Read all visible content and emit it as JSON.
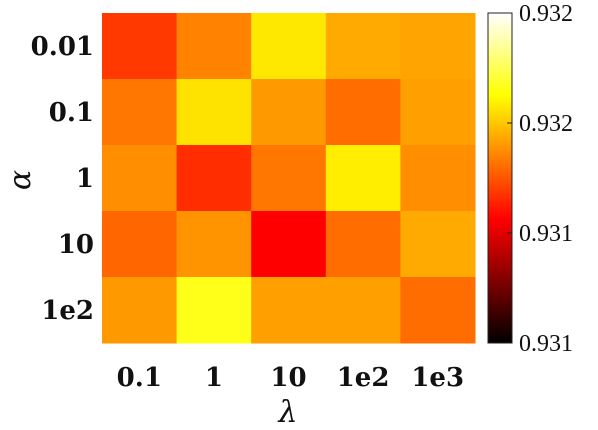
{
  "chart_data": {
    "type": "heatmap",
    "x_categories": [
      "0.1",
      "1",
      "10",
      "1e2",
      "1e3"
    ],
    "y_categories": [
      "0.01",
      "0.1",
      "1",
      "10",
      "1e2"
    ],
    "xlabel": "λ",
    "ylabel": "α",
    "values": [
      [
        0.93155,
        0.93168,
        0.93186,
        0.93175,
        0.93174
      ],
      [
        0.93166,
        0.93185,
        0.93172,
        0.93164,
        0.93173
      ],
      [
        0.9317,
        0.93153,
        0.93166,
        0.93187,
        0.9317
      ],
      [
        0.93163,
        0.93171,
        0.93145,
        0.93164,
        0.93175
      ],
      [
        0.93172,
        0.93193,
        0.93173,
        0.93173,
        0.93164
      ]
    ],
    "colorbar": {
      "colormap": "hot",
      "range": [
        0.931,
        0.9322
      ],
      "tick_labels": [
        "0.932",
        "0.932",
        "0.931",
        "0.931"
      ]
    },
    "grid": false
  }
}
